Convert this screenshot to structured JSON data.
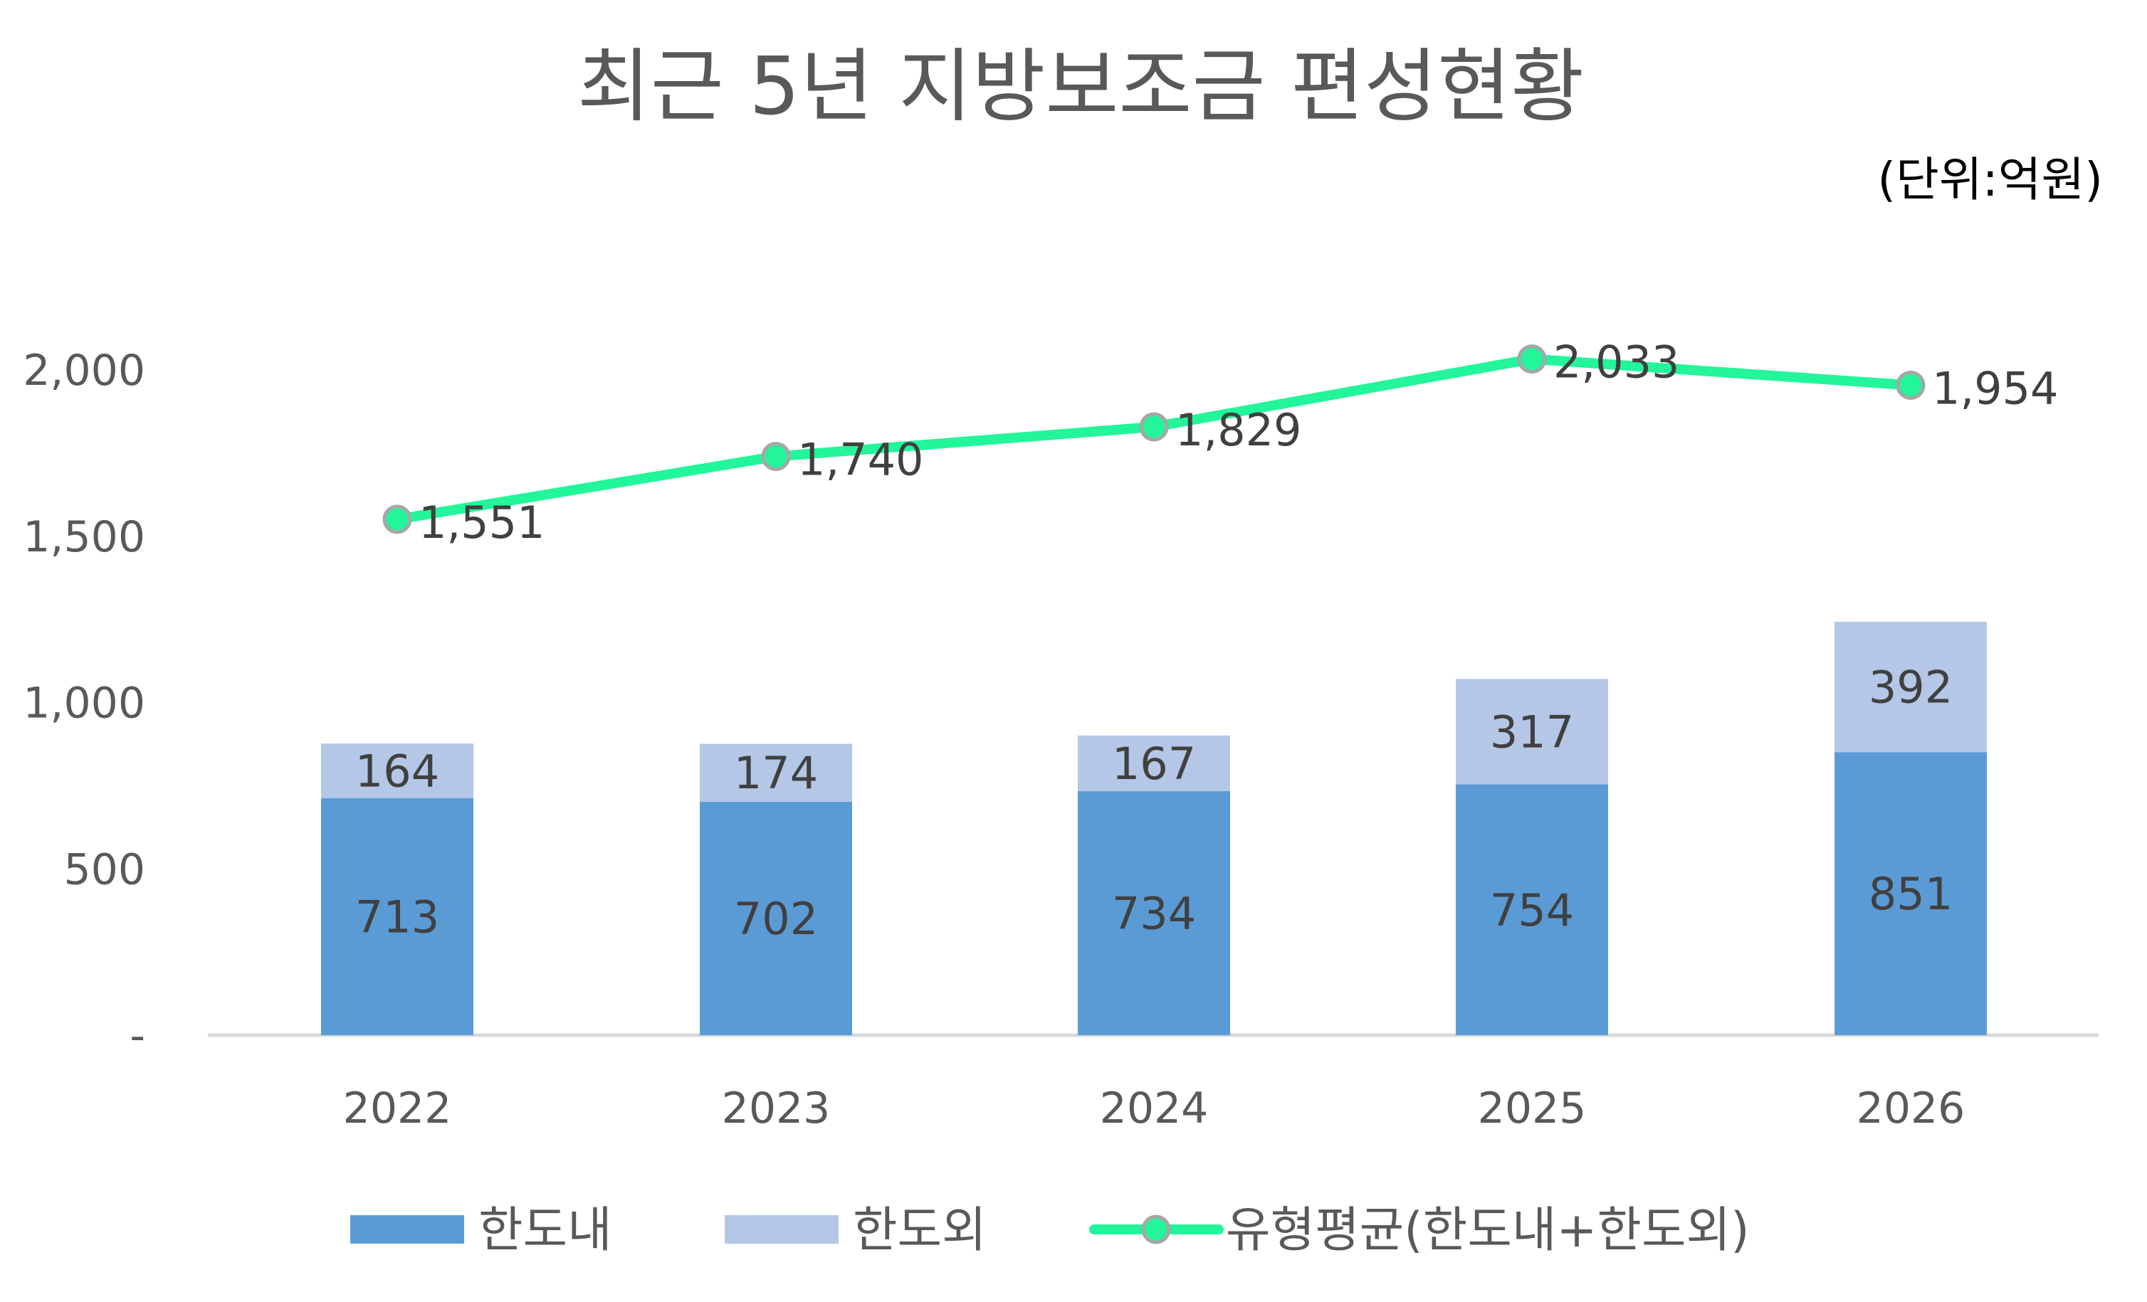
{
  "chart_data": {
    "type": "bar+line",
    "title": "최근 5년 지방보조금 편성현황",
    "unit_note": "(단위:억원)",
    "categories": [
      "2022",
      "2023",
      "2024",
      "2025",
      "2026"
    ],
    "stacked": true,
    "ylim": [
      0,
      2000
    ],
    "yticks": [
      0,
      500,
      1000,
      1500,
      2000
    ],
    "ytick_labels": [
      "-",
      "500",
      "1,000",
      "1,500",
      "2,000"
    ],
    "grid": false,
    "legend_position": "bottom",
    "series": [
      {
        "name": "한도내",
        "type": "bar",
        "color": "#5B9BD5",
        "values": [
          713,
          702,
          734,
          754,
          851
        ],
        "labels": [
          "713",
          "702",
          "734",
          "754",
          "851"
        ]
      },
      {
        "name": "한도외",
        "type": "bar",
        "color": "#B4C7E7",
        "values": [
          164,
          174,
          167,
          317,
          392
        ],
        "labels": [
          "164",
          "174",
          "167",
          "317",
          "392"
        ]
      },
      {
        "name": "유형평균(한도내+한도외)",
        "type": "line",
        "color": "#22F59A",
        "marker_edge": "#A6A6A6",
        "values": [
          1551,
          1740,
          1829,
          2033,
          1954
        ],
        "labels": [
          "1,551",
          "1,740",
          "1,829",
          "2,033",
          "1,954"
        ]
      }
    ]
  }
}
